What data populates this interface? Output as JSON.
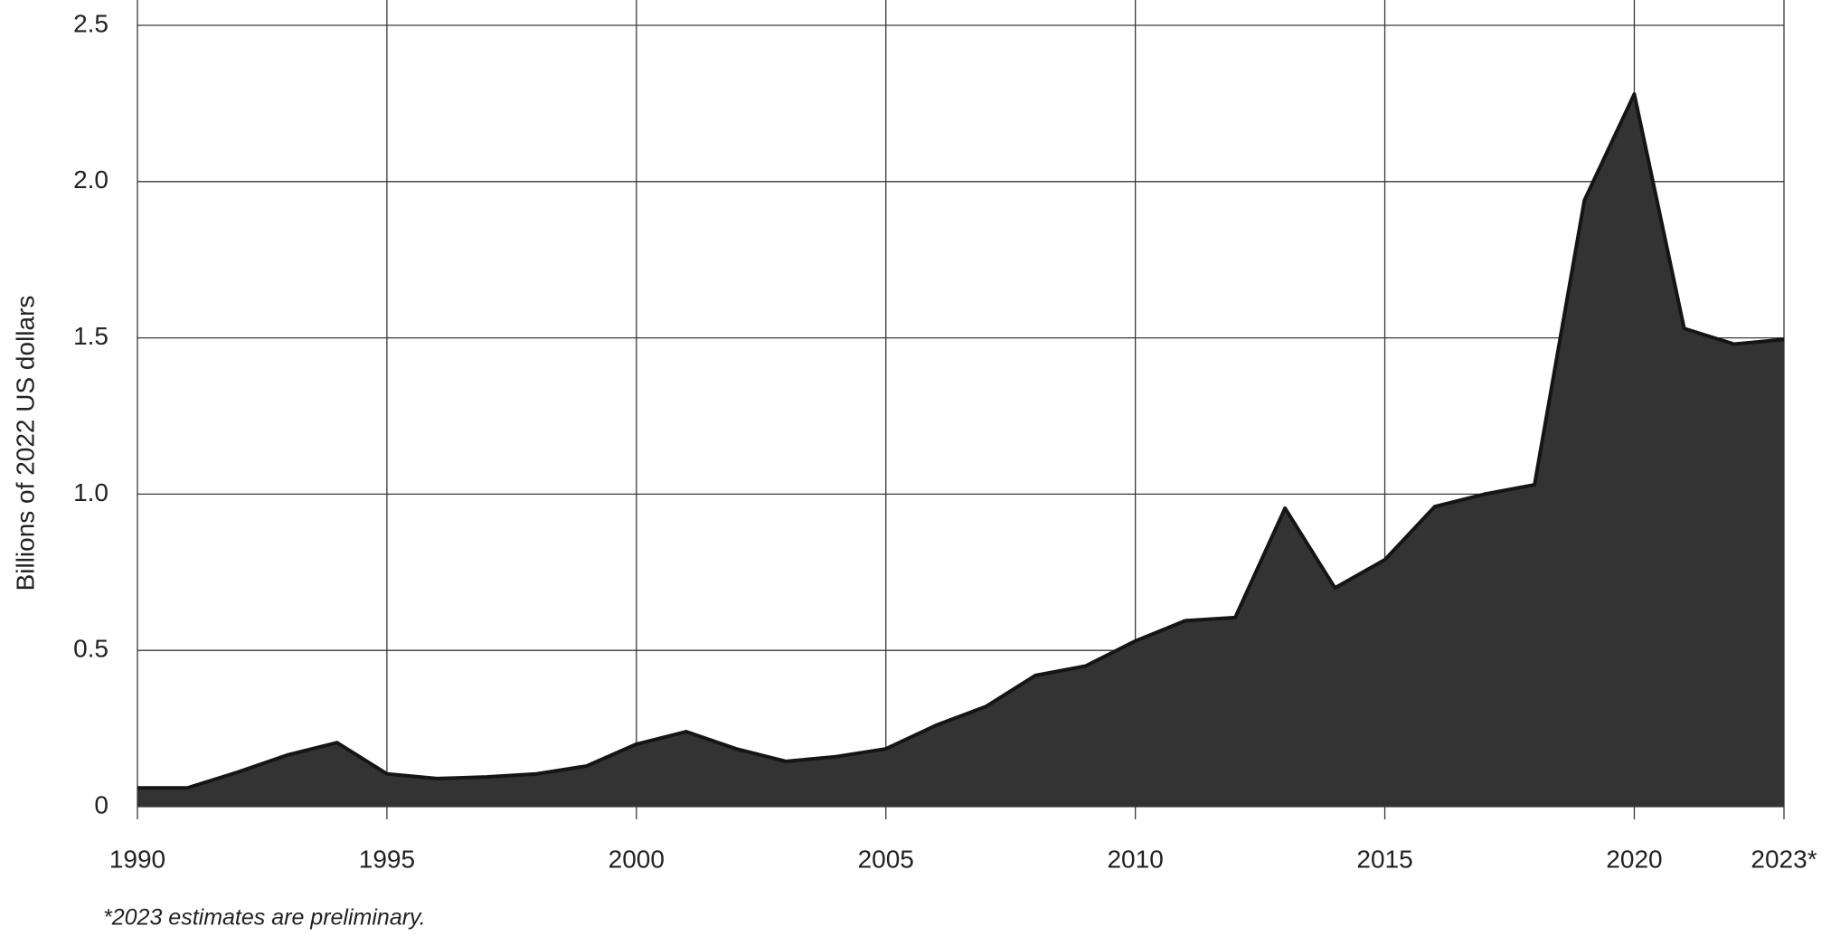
{
  "chart_data": {
    "type": "area",
    "ylabel": "Billions of 2022 US dollars",
    "note": "*2023 estimates are preliminary.",
    "x": [
      1990,
      1991,
      1992,
      1993,
      1994,
      1995,
      1996,
      1997,
      1998,
      1999,
      2000,
      2001,
      2002,
      2003,
      2004,
      2005,
      2006,
      2007,
      2008,
      2009,
      2010,
      2011,
      2012,
      2013,
      2014,
      2015,
      2016,
      2017,
      2018,
      2019,
      2020,
      2021,
      2022,
      2023
    ],
    "values": [
      0.06,
      0.06,
      0.11,
      0.165,
      0.205,
      0.105,
      0.09,
      0.095,
      0.105,
      0.13,
      0.2,
      0.24,
      0.185,
      0.145,
      0.16,
      0.185,
      0.26,
      0.32,
      0.42,
      0.45,
      0.53,
      0.595,
      0.605,
      0.955,
      0.7,
      0.79,
      0.96,
      1.0,
      1.03,
      1.94,
      2.28,
      1.53,
      1.48,
      1.495
    ],
    "color": "#333333",
    "line_color": "#151515",
    "xlim": [
      1990,
      2023
    ],
    "xticks": [
      1990,
      1995,
      2000,
      2005,
      2010,
      2015,
      2020,
      {
        "value": 2023,
        "label": "2023*"
      }
    ],
    "ylim": [
      0,
      2.5
    ],
    "yticks": [
      0,
      0.5,
      {
        "value": 1,
        "label": "1.0"
      },
      1.5,
      {
        "value": 2,
        "label": "2.0"
      },
      2.5
    ],
    "grid": true
  }
}
